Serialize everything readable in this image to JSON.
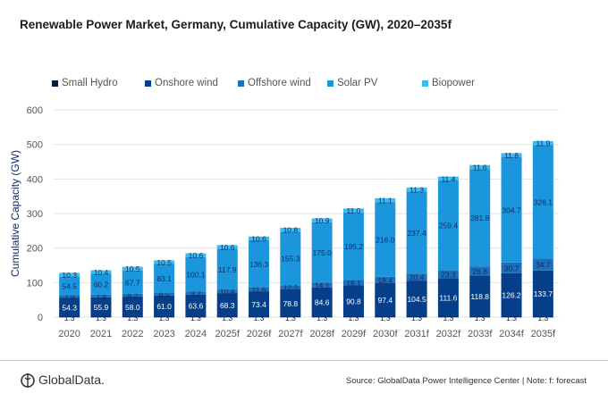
{
  "chart_data": {
    "type": "bar",
    "stacked": true,
    "title": "Renewable Power Market, Germany, Cumulative Capacity (GW), 2020–2035f",
    "xlabel": "",
    "ylabel": "Cumulative Capacity (GW)",
    "ylim": [
      0,
      600
    ],
    "yticks": [
      0,
      100,
      200,
      300,
      400,
      500,
      600
    ],
    "grid": true,
    "legend_position": "top",
    "categories": [
      "2020",
      "2021",
      "2022",
      "2023",
      "2024",
      "2025f",
      "2026f",
      "2027f",
      "2028f",
      "2029f",
      "2030f",
      "2031f",
      "2032f",
      "2033f",
      "2034f",
      "2035f"
    ],
    "series": [
      {
        "name": "Small Hydro",
        "color": "#0b1a45",
        "label_color": "#0b1a45",
        "values": [
          1.3,
          1.3,
          1.3,
          1.3,
          1.3,
          1.3,
          1.3,
          1.3,
          1.3,
          1.3,
          1.3,
          1.3,
          1.3,
          1.3,
          1.3,
          1.3
        ]
      },
      {
        "name": "Onshore wind",
        "color": "#053f8a",
        "label_color": "#ffffff",
        "values": [
          54.3,
          55.9,
          58.0,
          61.0,
          63.6,
          68.3,
          73.4,
          78.8,
          84.6,
          90.8,
          97.4,
          104.5,
          111.6,
          118.8,
          126.2,
          133.7
        ]
      },
      {
        "name": "Offshore wind",
        "color": "#1d70b7",
        "label_color": "#0b2f6b",
        "values": [
          7.9,
          7.9,
          8.2,
          8.5,
          9.2,
          10.4,
          11.6,
          12.3,
          14.1,
          16.1,
          18.4,
          20.4,
          23.3,
          26.8,
          30.7,
          34.7
        ]
      },
      {
        "name": "Solar PV",
        "color": "#1b96dc",
        "label_color": "#0b2f6b",
        "values": [
          54.5,
          60.2,
          67.7,
          83.1,
          100.1,
          117.9,
          136.3,
          155.3,
          175.0,
          195.2,
          216.0,
          237.4,
          259.4,
          281.8,
          304.7,
          328.1
        ]
      },
      {
        "name": "Biopower",
        "color": "#3dbbef",
        "label_color": "#0b2f6b",
        "values": [
          10.3,
          10.4,
          10.5,
          10.5,
          10.6,
          10.6,
          10.6,
          10.8,
          10.9,
          11.0,
          11.1,
          11.3,
          11.4,
          11.6,
          11.8,
          11.9
        ]
      }
    ]
  },
  "footer": {
    "logo": "GlobalData.",
    "source": "Source: GlobalData Power Intelligence Center | Note: f: forecast"
  }
}
